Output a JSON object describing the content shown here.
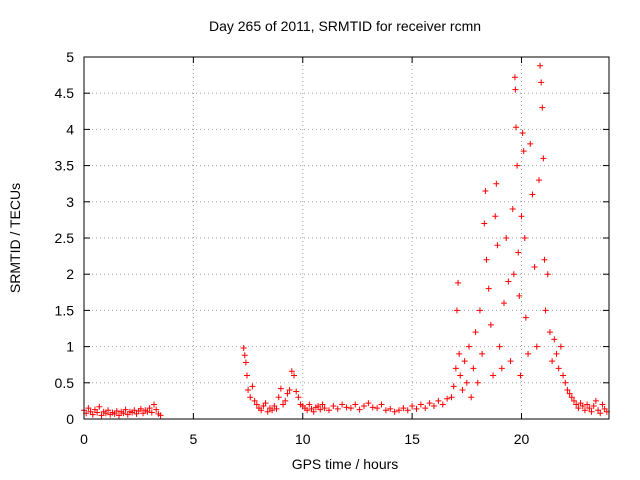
{
  "chart_data": {
    "type": "scatter",
    "title": "Day 265 of 2011, SRMTID for receiver rcmn",
    "xlabel": "GPS time / hours",
    "ylabel": "SRMTID / TECUs",
    "xlim": [
      0,
      24
    ],
    "ylim": [
      0,
      5
    ],
    "xticks": [
      0,
      5,
      10,
      15,
      20
    ],
    "yticks": [
      0,
      0.5,
      1,
      1.5,
      2,
      2.5,
      3,
      3.5,
      4,
      4.5,
      5
    ],
    "x_tick_labels": [
      "0",
      "5",
      "10",
      "15",
      "20"
    ],
    "y_tick_labels": [
      "0",
      "0.5",
      "1",
      "1.5",
      "2",
      "2.5",
      "3",
      "3.5",
      "4",
      "4.5",
      "5"
    ],
    "grid": true,
    "marker": "+",
    "color": "#ff0000",
    "series": [
      {
        "name": "SRMTID",
        "points": [
          [
            0.0,
            0.12
          ],
          [
            0.1,
            0.08
          ],
          [
            0.2,
            0.15
          ],
          [
            0.3,
            0.1
          ],
          [
            0.4,
            0.06
          ],
          [
            0.5,
            0.13
          ],
          [
            0.6,
            0.09
          ],
          [
            0.7,
            0.17
          ],
          [
            0.8,
            0.05
          ],
          [
            0.9,
            0.1
          ],
          [
            1.0,
            0.08
          ],
          [
            1.1,
            0.12
          ],
          [
            1.2,
            0.06
          ],
          [
            1.3,
            0.09
          ],
          [
            1.4,
            0.07
          ],
          [
            1.5,
            0.11
          ],
          [
            1.6,
            0.05
          ],
          [
            1.7,
            0.1
          ],
          [
            1.8,
            0.08
          ],
          [
            1.9,
            0.13
          ],
          [
            2.0,
            0.06
          ],
          [
            2.1,
            0.1
          ],
          [
            2.2,
            0.09
          ],
          [
            2.3,
            0.12
          ],
          [
            2.4,
            0.07
          ],
          [
            2.5,
            0.11
          ],
          [
            2.6,
            0.14
          ],
          [
            2.7,
            0.08
          ],
          [
            2.8,
            0.12
          ],
          [
            2.9,
            0.1
          ],
          [
            3.0,
            0.15
          ],
          [
            3.1,
            0.09
          ],
          [
            3.2,
            0.2
          ],
          [
            3.3,
            0.13
          ],
          [
            3.4,
            0.07
          ],
          [
            3.5,
            0.05
          ],
          [
            7.3,
            0.98
          ],
          [
            7.35,
            0.88
          ],
          [
            7.4,
            0.78
          ],
          [
            7.45,
            0.6
          ],
          [
            7.5,
            0.4
          ],
          [
            7.6,
            0.3
          ],
          [
            7.7,
            0.45
          ],
          [
            7.8,
            0.25
          ],
          [
            7.9,
            0.2
          ],
          [
            8.0,
            0.15
          ],
          [
            8.1,
            0.12
          ],
          [
            8.2,
            0.18
          ],
          [
            8.3,
            0.22
          ],
          [
            8.4,
            0.1
          ],
          [
            8.5,
            0.15
          ],
          [
            8.6,
            0.12
          ],
          [
            8.7,
            0.18
          ],
          [
            8.8,
            0.14
          ],
          [
            8.9,
            0.3
          ],
          [
            9.0,
            0.42
          ],
          [
            9.1,
            0.2
          ],
          [
            9.2,
            0.25
          ],
          [
            9.3,
            0.35
          ],
          [
            9.4,
            0.4
          ],
          [
            9.5,
            0.66
          ],
          [
            9.6,
            0.6
          ],
          [
            9.7,
            0.38
          ],
          [
            9.8,
            0.3
          ],
          [
            9.9,
            0.2
          ],
          [
            10.0,
            0.18
          ],
          [
            10.1,
            0.15
          ],
          [
            10.2,
            0.12
          ],
          [
            10.3,
            0.2
          ],
          [
            10.4,
            0.14
          ],
          [
            10.5,
            0.1
          ],
          [
            10.6,
            0.16
          ],
          [
            10.7,
            0.18
          ],
          [
            10.8,
            0.13
          ],
          [
            10.9,
            0.2
          ],
          [
            11.0,
            0.15
          ],
          [
            11.2,
            0.12
          ],
          [
            11.4,
            0.18
          ],
          [
            11.6,
            0.14
          ],
          [
            11.8,
            0.2
          ],
          [
            12.0,
            0.16
          ],
          [
            12.2,
            0.15
          ],
          [
            12.4,
            0.2
          ],
          [
            12.6,
            0.13
          ],
          [
            12.8,
            0.18
          ],
          [
            13.0,
            0.22
          ],
          [
            13.2,
            0.16
          ],
          [
            13.4,
            0.15
          ],
          [
            13.6,
            0.2
          ],
          [
            13.8,
            0.12
          ],
          [
            14.0,
            0.14
          ],
          [
            14.2,
            0.1
          ],
          [
            14.4,
            0.12
          ],
          [
            14.6,
            0.15
          ],
          [
            14.8,
            0.12
          ],
          [
            15.0,
            0.18
          ],
          [
            15.2,
            0.14
          ],
          [
            15.4,
            0.2
          ],
          [
            15.6,
            0.15
          ],
          [
            15.8,
            0.22
          ],
          [
            16.0,
            0.18
          ],
          [
            16.2,
            0.25
          ],
          [
            16.4,
            0.2
          ],
          [
            16.6,
            0.28
          ],
          [
            16.8,
            0.3
          ],
          [
            16.9,
            0.45
          ],
          [
            17.0,
            0.7
          ],
          [
            17.05,
            1.5
          ],
          [
            17.1,
            1.88
          ],
          [
            17.15,
            0.9
          ],
          [
            17.2,
            0.6
          ],
          [
            17.3,
            0.4
          ],
          [
            17.4,
            0.8
          ],
          [
            17.5,
            0.5
          ],
          [
            17.6,
            1.0
          ],
          [
            17.7,
            0.3
          ],
          [
            17.8,
            0.7
          ],
          [
            17.9,
            1.2
          ],
          [
            18.0,
            0.5
          ],
          [
            18.1,
            1.5
          ],
          [
            18.2,
            0.9
          ],
          [
            18.3,
            2.7
          ],
          [
            18.35,
            3.15
          ],
          [
            18.4,
            2.2
          ],
          [
            18.5,
            1.8
          ],
          [
            18.6,
            1.3
          ],
          [
            18.7,
            0.6
          ],
          [
            18.8,
            2.8
          ],
          [
            18.85,
            3.25
          ],
          [
            18.9,
            2.4
          ],
          [
            19.0,
            1.0
          ],
          [
            19.1,
            0.7
          ],
          [
            19.2,
            1.6
          ],
          [
            19.3,
            2.5
          ],
          [
            19.4,
            1.9
          ],
          [
            19.5,
            0.8
          ],
          [
            19.6,
            2.9
          ],
          [
            19.65,
            2.0
          ],
          [
            19.7,
            4.72
          ],
          [
            19.72,
            4.55
          ],
          [
            19.75,
            4.03
          ],
          [
            19.8,
            3.5
          ],
          [
            19.85,
            2.3
          ],
          [
            19.9,
            1.7
          ],
          [
            19.95,
            0.6
          ],
          [
            20.0,
            2.8
          ],
          [
            20.05,
            3.95
          ],
          [
            20.1,
            3.7
          ],
          [
            20.15,
            2.5
          ],
          [
            20.2,
            1.4
          ],
          [
            20.3,
            0.9
          ],
          [
            20.4,
            3.8
          ],
          [
            20.5,
            3.1
          ],
          [
            20.6,
            2.1
          ],
          [
            20.7,
            1.0
          ],
          [
            20.8,
            3.3
          ],
          [
            20.85,
            4.88
          ],
          [
            20.9,
            4.65
          ],
          [
            20.95,
            4.3
          ],
          [
            21.0,
            3.6
          ],
          [
            21.05,
            2.2
          ],
          [
            21.1,
            1.5
          ],
          [
            21.2,
            2.0
          ],
          [
            21.3,
            1.2
          ],
          [
            21.4,
            0.8
          ],
          [
            21.5,
            1.1
          ],
          [
            21.6,
            0.9
          ],
          [
            21.7,
            0.7
          ],
          [
            21.8,
            1.0
          ],
          [
            21.9,
            0.6
          ],
          [
            22.0,
            0.5
          ],
          [
            22.1,
            0.4
          ],
          [
            22.2,
            0.35
          ],
          [
            22.3,
            0.3
          ],
          [
            22.4,
            0.25
          ],
          [
            22.5,
            0.2
          ],
          [
            22.6,
            0.15
          ],
          [
            22.7,
            0.22
          ],
          [
            22.8,
            0.18
          ],
          [
            22.9,
            0.12
          ],
          [
            23.0,
            0.2
          ],
          [
            23.1,
            0.15
          ],
          [
            23.2,
            0.1
          ],
          [
            23.3,
            0.18
          ],
          [
            23.4,
            0.25
          ],
          [
            23.5,
            0.12
          ],
          [
            23.6,
            0.08
          ],
          [
            23.7,
            0.2
          ],
          [
            23.8,
            0.14
          ],
          [
            23.9,
            0.1
          ]
        ]
      }
    ]
  }
}
